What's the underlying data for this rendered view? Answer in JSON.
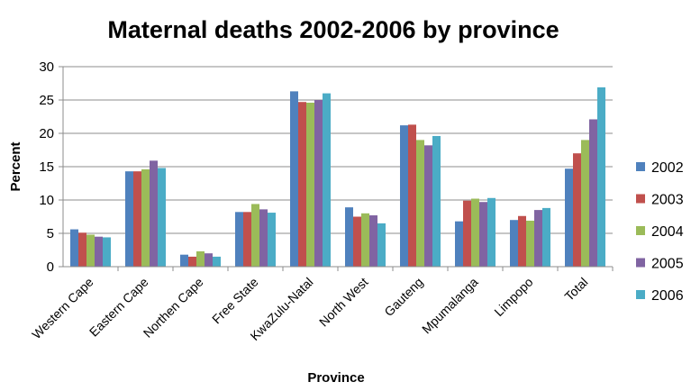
{
  "chart_data": {
    "type": "bar",
    "title": "Maternal deaths 2002-2006 by province",
    "xlabel": "Province",
    "ylabel": "Percent",
    "ylim": [
      0,
      30
    ],
    "yticks": [
      0,
      5,
      10,
      15,
      20,
      25,
      30
    ],
    "grid": true,
    "legend_position": "right",
    "categories": [
      "Western Cape",
      "Eastern Cape",
      "Northen Cape",
      "Free State",
      "KwaZulu-Natal",
      "North West",
      "Gauteng",
      "Mpumalanga",
      "Limpopo",
      "Total"
    ],
    "series": [
      {
        "name": "2002",
        "color": "#4F81BD",
        "values": [
          5.6,
          14.3,
          1.8,
          8.2,
          26.3,
          8.9,
          21.2,
          6.8,
          7.0,
          14.7
        ]
      },
      {
        "name": "2003",
        "color": "#C0504D",
        "values": [
          5.1,
          14.3,
          1.5,
          8.2,
          24.7,
          7.5,
          21.3,
          9.9,
          7.6,
          17.0
        ]
      },
      {
        "name": "2004",
        "color": "#9BBB59",
        "values": [
          4.8,
          14.6,
          2.3,
          9.4,
          24.6,
          8.0,
          19.0,
          10.2,
          6.9,
          19.0
        ]
      },
      {
        "name": "2005",
        "color": "#8064A2",
        "values": [
          4.5,
          15.9,
          2.0,
          8.6,
          25.0,
          7.7,
          18.2,
          9.7,
          8.5,
          22.1
        ]
      },
      {
        "name": "2006",
        "color": "#4BACC6",
        "values": [
          4.4,
          14.8,
          1.5,
          8.1,
          26.0,
          6.5,
          19.6,
          10.3,
          8.8,
          26.9
        ]
      }
    ]
  }
}
